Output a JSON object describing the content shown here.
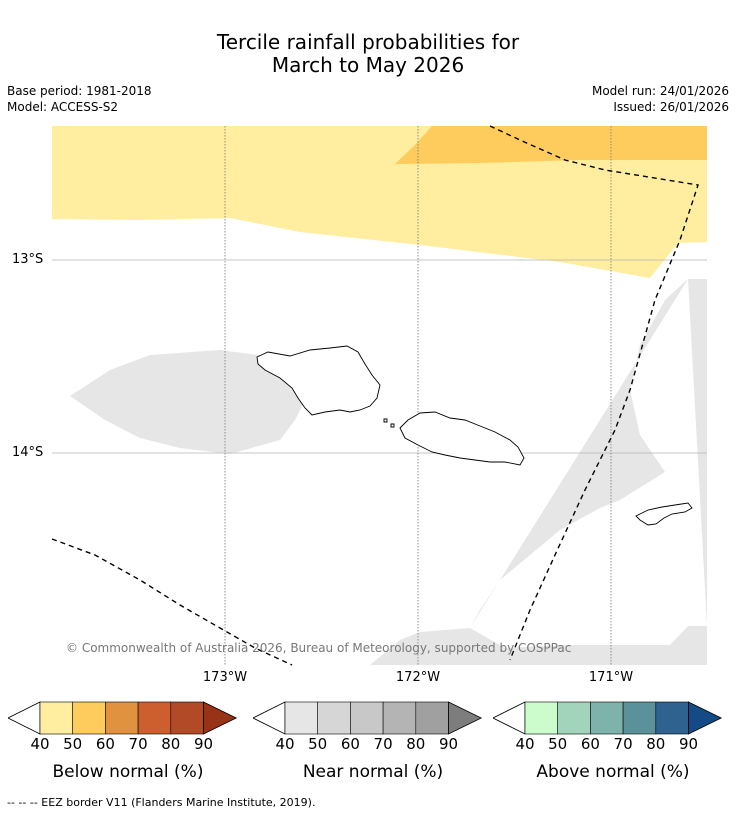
{
  "header": {
    "title_line1": "Tercile rainfall probabilities for",
    "title_line2": "March to May 2026",
    "base_period": "Base period: 1981-2018",
    "model": "Model: ACCESS-S2",
    "model_run": "Model run: 24/01/2026",
    "issued": "Issued: 26/01/2026"
  },
  "map": {
    "lat_labels": [
      "13°S",
      "14°S"
    ],
    "lon_labels": [
      "173°W",
      "172°W",
      "171°W"
    ],
    "copyright": "© Commonwealth of Australia 2026, Bureau of Meteorology, supported by COSPPac",
    "colors": {
      "below_40_50": "#ffeda0",
      "below_50_60": "#fecc5c",
      "near_40_50": "#e6e6e6",
      "coastline": "#000000",
      "eez": "#000000"
    }
  },
  "legend": {
    "ticks": [
      "40",
      "50",
      "60",
      "70",
      "80",
      "90"
    ],
    "scales": [
      {
        "label": "Below normal (%)",
        "colors": [
          "#ffeda0",
          "#fecc5c",
          "#e1923f",
          "#cd5f2e",
          "#b24a27",
          "#983318"
        ]
      },
      {
        "label": "Near normal (%)",
        "colors": [
          "#e6e6e6",
          "#d6d6d6",
          "#c8c8c8",
          "#b4b4b4",
          "#a0a0a0",
          "#7d7d7d"
        ]
      },
      {
        "label": "Above normal (%)",
        "colors": [
          "#ccfccc",
          "#a2d4bb",
          "#7db3aa",
          "#5a919a",
          "#30628f",
          "#144a86"
        ]
      }
    ]
  },
  "footer": {
    "eez_note": "--  --  -- EEZ border V11 (Flanders Marine Institute, 2019)."
  }
}
